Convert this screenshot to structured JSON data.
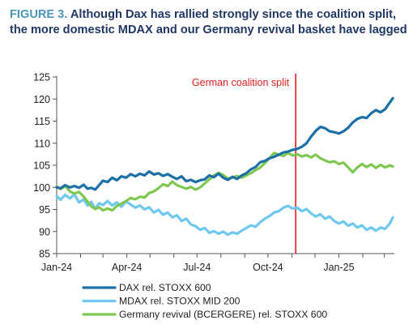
{
  "figure": {
    "prefix": "FIGURE 3.",
    "title": "Although Dax has rallied strongly since the coalition split, the more domestic MDAX and our Germany revival basket have lagged"
  },
  "colors": {
    "title_prefix": "#4b95b8",
    "title": "#1f3864",
    "annotation": "#e01e1e"
  },
  "chart_data": {
    "type": "line",
    "title": "Although Dax has rallied strongly since the coalition split, the more domestic MDAX and our Germany revival basket have lagged",
    "xlabel": "",
    "ylabel": "",
    "x_ticks": [
      "Jan-24",
      "Apr-24",
      "Jul-24",
      "Oct-24",
      "Jan-25"
    ],
    "xlim": [
      "2024-01-01",
      "2025-03-14"
    ],
    "ylim": [
      85,
      125
    ],
    "y_ticks": [
      85,
      90,
      95,
      100,
      105,
      110,
      115,
      120,
      125
    ],
    "grid": false,
    "legend_position": "bottom",
    "annotation": {
      "text": "German coalition split",
      "date": "2024-11-06",
      "color": "#e01e1e"
    },
    "series": [
      {
        "name": "DAX rel. STOXX 600",
        "color": "#1c70a6",
        "points": [
          [
            "2024-01-01",
            100
          ],
          [
            "2024-01-06",
            99.8
          ],
          [
            "2024-01-12",
            100.5
          ],
          [
            "2024-01-18",
            100
          ],
          [
            "2024-01-24",
            100.3
          ],
          [
            "2024-01-30",
            99.9
          ],
          [
            "2024-02-05",
            100.6
          ],
          [
            "2024-02-10",
            99.7
          ],
          [
            "2024-02-15",
            99.9
          ],
          [
            "2024-02-20",
            99.5
          ],
          [
            "2024-02-25",
            100.5
          ],
          [
            "2024-03-01",
            101.5
          ],
          [
            "2024-03-07",
            101.2
          ],
          [
            "2024-03-13",
            102.2
          ],
          [
            "2024-03-19",
            101.6
          ],
          [
            "2024-03-25",
            102.5
          ],
          [
            "2024-03-31",
            102.2
          ],
          [
            "2024-04-06",
            103
          ],
          [
            "2024-04-12",
            102.5
          ],
          [
            "2024-04-18",
            103.1
          ],
          [
            "2024-04-24",
            102.7
          ],
          [
            "2024-04-30",
            103.6
          ],
          [
            "2024-05-06",
            102.9
          ],
          [
            "2024-05-12",
            103.2
          ],
          [
            "2024-05-18",
            102.6
          ],
          [
            "2024-05-24",
            103
          ],
          [
            "2024-05-30",
            102.4
          ],
          [
            "2024-06-05",
            101.9
          ],
          [
            "2024-06-11",
            102.5
          ],
          [
            "2024-06-17",
            101.4
          ],
          [
            "2024-06-23",
            101.7
          ],
          [
            "2024-06-29",
            101.2
          ],
          [
            "2024-07-05",
            101.6
          ],
          [
            "2024-07-11",
            101.8
          ],
          [
            "2024-07-17",
            102.7
          ],
          [
            "2024-07-23",
            102.3
          ],
          [
            "2024-07-29",
            103.1
          ],
          [
            "2024-08-04",
            102.2
          ],
          [
            "2024-08-10",
            101.7
          ],
          [
            "2024-08-16",
            102.4
          ],
          [
            "2024-08-22",
            101.9
          ],
          [
            "2024-08-28",
            102.7
          ],
          [
            "2024-09-03",
            103.2
          ],
          [
            "2024-09-09",
            104.1
          ],
          [
            "2024-09-15",
            104.6
          ],
          [
            "2024-09-21",
            105.7
          ],
          [
            "2024-09-27",
            106
          ],
          [
            "2024-10-03",
            106.6
          ],
          [
            "2024-10-09",
            106.9
          ],
          [
            "2024-10-15",
            107.4
          ],
          [
            "2024-10-21",
            107.9
          ],
          [
            "2024-10-27",
            108.1
          ],
          [
            "2024-11-02",
            108.5
          ],
          [
            "2024-11-08",
            108.7
          ],
          [
            "2024-11-14",
            109.2
          ],
          [
            "2024-11-20",
            110
          ],
          [
            "2024-11-26",
            111.5
          ],
          [
            "2024-12-02",
            112.8
          ],
          [
            "2024-12-08",
            113.7
          ],
          [
            "2024-12-14",
            113.4
          ],
          [
            "2024-12-20",
            112.7
          ],
          [
            "2024-12-26",
            112.5
          ],
          [
            "2025-01-01",
            112.2
          ],
          [
            "2025-01-07",
            112.7
          ],
          [
            "2025-01-13",
            113.5
          ],
          [
            "2025-01-19",
            114.7
          ],
          [
            "2025-01-25",
            115.5
          ],
          [
            "2025-01-31",
            115.9
          ],
          [
            "2025-02-06",
            115.7
          ],
          [
            "2025-02-12",
            116.8
          ],
          [
            "2025-02-18",
            117.5
          ],
          [
            "2025-02-24",
            117
          ],
          [
            "2025-03-02",
            117.7
          ],
          [
            "2025-03-08",
            119.2
          ],
          [
            "2025-03-12",
            120.2
          ]
        ]
      },
      {
        "name": "MDAX rel. STOXX MID 200",
        "color": "#6fc8ef",
        "points": [
          [
            "2024-01-01",
            98
          ],
          [
            "2024-01-06",
            97.2
          ],
          [
            "2024-01-12",
            98.3
          ],
          [
            "2024-01-18",
            97.5
          ],
          [
            "2024-01-24",
            98.4
          ],
          [
            "2024-01-30",
            96.6
          ],
          [
            "2024-02-05",
            97.3
          ],
          [
            "2024-02-10",
            95.9
          ],
          [
            "2024-02-15",
            96.7
          ],
          [
            "2024-02-20",
            95.2
          ],
          [
            "2024-02-25",
            96.4
          ],
          [
            "2024-03-01",
            96
          ],
          [
            "2024-03-07",
            96.9
          ],
          [
            "2024-03-13",
            95.9
          ],
          [
            "2024-03-19",
            96.6
          ],
          [
            "2024-03-25",
            95.6
          ],
          [
            "2024-03-31",
            96.8
          ],
          [
            "2024-04-06",
            96.1
          ],
          [
            "2024-04-12",
            95.4
          ],
          [
            "2024-04-18",
            95.9
          ],
          [
            "2024-04-24",
            95
          ],
          [
            "2024-04-30",
            95.5
          ],
          [
            "2024-05-06",
            94.3
          ],
          [
            "2024-05-12",
            94.9
          ],
          [
            "2024-05-18",
            93.8
          ],
          [
            "2024-05-24",
            94.3
          ],
          [
            "2024-05-30",
            93.2
          ],
          [
            "2024-06-05",
            93.7
          ],
          [
            "2024-06-11",
            92.4
          ],
          [
            "2024-06-17",
            92.9
          ],
          [
            "2024-06-23",
            91.6
          ],
          [
            "2024-06-29",
            91.2
          ],
          [
            "2024-07-05",
            90.4
          ],
          [
            "2024-07-11",
            90.8
          ],
          [
            "2024-07-17",
            89.7
          ],
          [
            "2024-07-23",
            90.1
          ],
          [
            "2024-07-29",
            89.5
          ],
          [
            "2024-08-04",
            90
          ],
          [
            "2024-08-10",
            89.3
          ],
          [
            "2024-08-16",
            89.8
          ],
          [
            "2024-08-22",
            89.5
          ],
          [
            "2024-08-28",
            90.2
          ],
          [
            "2024-09-03",
            90.8
          ],
          [
            "2024-09-09",
            91.4
          ],
          [
            "2024-09-15",
            91.1
          ],
          [
            "2024-09-21",
            92.1
          ],
          [
            "2024-09-27",
            92.9
          ],
          [
            "2024-10-03",
            93.5
          ],
          [
            "2024-10-09",
            94.3
          ],
          [
            "2024-10-15",
            94.6
          ],
          [
            "2024-10-21",
            95.4
          ],
          [
            "2024-10-27",
            95.8
          ],
          [
            "2024-11-02",
            95.2
          ],
          [
            "2024-11-08",
            95.4
          ],
          [
            "2024-11-14",
            94.6
          ],
          [
            "2024-11-20",
            95.1
          ],
          [
            "2024-11-26",
            94.1
          ],
          [
            "2024-12-02",
            93.4
          ],
          [
            "2024-12-08",
            93.9
          ],
          [
            "2024-12-14",
            92.9
          ],
          [
            "2024-12-20",
            93.4
          ],
          [
            "2024-12-26",
            92.4
          ],
          [
            "2025-01-01",
            91.8
          ],
          [
            "2025-01-07",
            92.3
          ],
          [
            "2025-01-13",
            91.3
          ],
          [
            "2025-01-19",
            91.8
          ],
          [
            "2025-01-25",
            90.9
          ],
          [
            "2025-01-31",
            91.4
          ],
          [
            "2025-02-06",
            90.4
          ],
          [
            "2025-02-12",
            90.9
          ],
          [
            "2025-02-18",
            90.2
          ],
          [
            "2025-02-24",
            90.9
          ],
          [
            "2025-03-02",
            90.6
          ],
          [
            "2025-03-08",
            91.8
          ],
          [
            "2025-03-12",
            93.2
          ]
        ]
      },
      {
        "name": "Germany revival (BCERGERE) rel. STOXX 600",
        "color": "#7ec851",
        "points": [
          [
            "2024-01-01",
            100.2
          ],
          [
            "2024-01-06",
            99.6
          ],
          [
            "2024-01-12",
            100.3
          ],
          [
            "2024-01-18",
            99.1
          ],
          [
            "2024-01-24",
            98.6
          ],
          [
            "2024-01-30",
            99
          ],
          [
            "2024-02-05",
            97.9
          ],
          [
            "2024-02-10",
            96.8
          ],
          [
            "2024-02-15",
            95.7
          ],
          [
            "2024-02-20",
            95.1
          ],
          [
            "2024-02-25",
            95.5
          ],
          [
            "2024-03-01",
            94.8
          ],
          [
            "2024-03-07",
            95.2
          ],
          [
            "2024-03-13",
            94.8
          ],
          [
            "2024-03-19",
            95.8
          ],
          [
            "2024-03-25",
            96.3
          ],
          [
            "2024-03-31",
            96.9
          ],
          [
            "2024-04-06",
            97.6
          ],
          [
            "2024-04-12",
            97.3
          ],
          [
            "2024-04-18",
            97.9
          ],
          [
            "2024-04-24",
            97.7
          ],
          [
            "2024-04-30",
            98.7
          ],
          [
            "2024-05-06",
            99.1
          ],
          [
            "2024-05-12",
            99.8
          ],
          [
            "2024-05-18",
            100.7
          ],
          [
            "2024-05-24",
            100.3
          ],
          [
            "2024-05-30",
            101.3
          ],
          [
            "2024-06-05",
            100.5
          ],
          [
            "2024-06-11",
            100.1
          ],
          [
            "2024-06-17",
            99.7
          ],
          [
            "2024-06-23",
            100.1
          ],
          [
            "2024-06-29",
            99.5
          ],
          [
            "2024-07-05",
            100
          ],
          [
            "2024-07-11",
            100.9
          ],
          [
            "2024-07-17",
            101.8
          ],
          [
            "2024-07-23",
            102.7
          ],
          [
            "2024-07-29",
            103.3
          ],
          [
            "2024-08-04",
            102.8
          ],
          [
            "2024-08-10",
            102
          ],
          [
            "2024-08-16",
            102.2
          ],
          [
            "2024-08-22",
            102.6
          ],
          [
            "2024-08-28",
            102.2
          ],
          [
            "2024-09-03",
            102.7
          ],
          [
            "2024-09-09",
            103.2
          ],
          [
            "2024-09-15",
            103.9
          ],
          [
            "2024-09-21",
            104.5
          ],
          [
            "2024-09-27",
            105.5
          ],
          [
            "2024-10-03",
            106.6
          ],
          [
            "2024-10-09",
            107.8
          ],
          [
            "2024-10-15",
            107.4
          ],
          [
            "2024-10-21",
            107.1
          ],
          [
            "2024-10-27",
            107.8
          ],
          [
            "2024-11-02",
            107.2
          ],
          [
            "2024-11-08",
            107.5
          ],
          [
            "2024-11-14",
            107
          ],
          [
            "2024-11-20",
            107.3
          ],
          [
            "2024-11-26",
            106.8
          ],
          [
            "2024-12-02",
            107.4
          ],
          [
            "2024-12-08",
            106.6
          ],
          [
            "2024-12-14",
            106.1
          ],
          [
            "2024-12-20",
            105.7
          ],
          [
            "2024-12-26",
            105.9
          ],
          [
            "2025-01-01",
            105.3
          ],
          [
            "2025-01-07",
            105.6
          ],
          [
            "2025-01-13",
            104.5
          ],
          [
            "2025-01-19",
            103.4
          ],
          [
            "2025-01-25",
            104.5
          ],
          [
            "2025-01-31",
            105.3
          ],
          [
            "2025-02-06",
            104.6
          ],
          [
            "2025-02-12",
            105.2
          ],
          [
            "2025-02-18",
            104.4
          ],
          [
            "2025-02-24",
            105.1
          ],
          [
            "2025-03-02",
            104.5
          ],
          [
            "2025-03-08",
            105
          ],
          [
            "2025-03-12",
            104.7
          ]
        ]
      }
    ]
  }
}
